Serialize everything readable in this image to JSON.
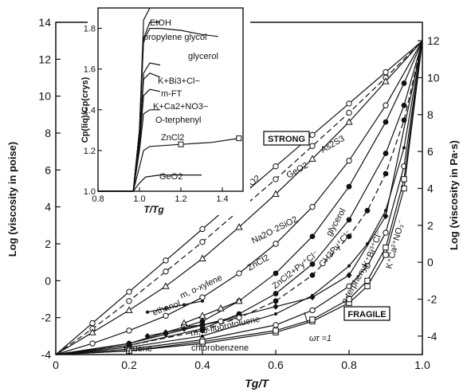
{
  "chart_data": [
    {
      "type": "line",
      "title": "",
      "xlabel": "Tg/T",
      "ylabel_left": "Log (viscosity in poise)",
      "ylabel_right": "Log (viscosity in Pa·s)",
      "xlim": [
        0,
        1.0
      ],
      "ylim_left": [
        -4,
        14
      ],
      "ylim_right": [
        -5,
        13
      ],
      "x_ticks": [
        "0",
        "0.2",
        "0.4",
        "0.6",
        "0.8",
        "1.0"
      ],
      "y_ticks_left": [
        "-4",
        "-2",
        "0",
        "2",
        "4",
        "6",
        "8",
        "10",
        "12",
        "14"
      ],
      "y_ticks_right": [
        "-4",
        "-2",
        "0",
        "2",
        "4",
        "6",
        "8",
        "10",
        "12"
      ],
      "annotations": {
        "strong": "STRONG",
        "fragile": "FRAGILE",
        "omega_tau": "ωτ =1"
      },
      "series": [
        {
          "name": "SiO2",
          "x": [
            0,
            0.1,
            0.2,
            0.3,
            0.4,
            0.5,
            0.6,
            0.7,
            0.8,
            0.9,
            1.0
          ],
          "y": [
            -4,
            -2.3,
            -0.6,
            1.1,
            2.8,
            4.5,
            6.2,
            7.9,
            9.6,
            11.3,
            13
          ]
        },
        {
          "name": "GeO2",
          "x": [
            0,
            0.1,
            0.2,
            0.3,
            0.4,
            0.5,
            0.6,
            0.7,
            0.8,
            0.9,
            1.0
          ],
          "y": [
            -4,
            -2.6,
            -1.1,
            0.5,
            2.1,
            3.8,
            5.5,
            7.3,
            9.1,
            11,
            13
          ]
        },
        {
          "name": "As2S3",
          "x": [
            0,
            0.1,
            0.2,
            0.3,
            0.4,
            0.5,
            0.6,
            0.7,
            0.8,
            0.9,
            1.0
          ],
          "y": [
            -4,
            -2.8,
            -1.6,
            -0.3,
            1.2,
            2.9,
            4.7,
            6.6,
            8.6,
            10.8,
            13
          ]
        },
        {
          "name": "Na2O·2SiO2",
          "x": [
            0,
            0.1,
            0.2,
            0.3,
            0.4,
            0.5,
            0.6,
            0.7,
            0.8,
            0.9,
            1.0
          ],
          "y": [
            -4,
            -3.4,
            -2.7,
            -1.9,
            -0.9,
            0.4,
            2,
            4,
            6.5,
            9.5,
            13
          ]
        },
        {
          "name": "ZnCl2",
          "x": [
            0,
            0.2,
            0.4,
            0.5,
            0.6,
            0.7,
            0.8,
            0.9,
            0.95,
            1.0
          ],
          "y": [
            -4,
            -3.4,
            -2.2,
            -1.1,
            0.4,
            2.4,
            5.1,
            8.6,
            10.7,
            13
          ]
        },
        {
          "name": "ZnCl2+Py⁺Cl⁻",
          "x": [
            0,
            0.2,
            0.4,
            0.5,
            0.6,
            0.7,
            0.8,
            0.9,
            0.95,
            1.0
          ],
          "y": [
            -4,
            -3.5,
            -2.6,
            -1.8,
            -0.7,
            0.9,
            3.3,
            6.9,
            9.5,
            13
          ]
        },
        {
          "name": "glycerol",
          "x": [
            0,
            0.2,
            0.4,
            0.5,
            0.6,
            0.7,
            0.8,
            0.85,
            0.9,
            0.95,
            1.0
          ],
          "y": [
            -4,
            -3.5,
            -2.7,
            -2,
            -1.1,
            0.3,
            2.4,
            3.8,
            5.8,
            8.7,
            13
          ]
        },
        {
          "name": "CH3Py⁺Cl⁻",
          "x": [
            0,
            0.2,
            0.4,
            0.6,
            0.7,
            0.8,
            0.85,
            0.9,
            0.95,
            1.0
          ],
          "y": [
            -4,
            -3.6,
            -3,
            -1.8,
            -0.8,
            0.8,
            2,
            3.8,
            7.2,
            13
          ]
        },
        {
          "name": "K⁺Bi³⁺Cl⁻",
          "x": [
            0,
            0.2,
            0.4,
            0.6,
            0.7,
            0.8,
            0.85,
            0.9,
            0.95,
            1.0
          ],
          "y": [
            -4,
            -3.7,
            -3.2,
            -2.4,
            -1.6,
            -0.3,
            0.8,
            2.6,
            6.2,
            13
          ]
        },
        {
          "name": "K⁺Ca²⁺NO₃⁻",
          "x": [
            0,
            0.2,
            0.4,
            0.6,
            0.7,
            0.8,
            0.85,
            0.9,
            0.95,
            1.0
          ],
          "y": [
            -4,
            -3.8,
            -3.4,
            -2.8,
            -2.2,
            -1.2,
            -0.3,
            1.4,
            5,
            13
          ]
        },
        {
          "name": "o-terphenyl",
          "x": [
            0,
            0.2,
            0.4,
            0.6,
            0.7,
            0.8,
            0.85,
            0.9,
            0.95,
            1.0
          ],
          "y": [
            -4,
            -3.8,
            -3.3,
            -2.7,
            -2.1,
            -1,
            0,
            1.8,
            5.5,
            13
          ]
        },
        {
          "name": "toluene",
          "x": [
            0,
            0.2,
            0.3,
            0.4,
            0.5,
            0.6,
            0.7,
            0.8,
            0.9,
            1.0
          ],
          "y": [
            -4,
            -3.4,
            -2.9,
            -2.4,
            -1.9,
            -1.4,
            -0.9,
            0.3,
            3.5,
            13
          ]
        },
        {
          "name": "m, o-xylene",
          "x": [
            0.35,
            0.4,
            0.45,
            0.5
          ],
          "y": [
            -2.3,
            -1.9,
            -1.5,
            -1.1
          ]
        },
        {
          "name": "ethanol",
          "x": [
            0.25,
            0.3,
            0.35,
            0.4
          ],
          "y": [
            -1.7,
            -1.5,
            -1.3,
            -1.1
          ]
        },
        {
          "name": "m, o-fluorotoluene",
          "x": [
            0.35,
            0.4,
            0.45,
            0.5
          ],
          "y": [
            -2.5,
            -2.4,
            -2.2,
            -2
          ]
        },
        {
          "name": "chlorobenzene",
          "x": [
            0.25,
            0.3,
            0.35,
            0.4
          ],
          "y": [
            -3,
            -2.8,
            -2.6,
            -2.4
          ]
        }
      ]
    },
    {
      "type": "line",
      "title": "",
      "xlabel": "T/Tg",
      "ylabel": "Cp(liq)/Cp(crys)",
      "xlim": [
        0.8,
        1.5
      ],
      "ylim": [
        1.0,
        1.9
      ],
      "x_ticks": [
        "0.8",
        "1.0",
        "1.2",
        "1.4"
      ],
      "y_ticks": [
        "1.0",
        "1.2",
        "1.4",
        "1.6",
        "1.8"
      ],
      "series": [
        {
          "name": "EtOH",
          "x": [
            0.8,
            0.97,
            1.0,
            1.02,
            1.05
          ],
          "y": [
            1.0,
            1.0,
            1.3,
            1.84,
            1.9
          ]
        },
        {
          "name": "propylene glycol",
          "x": [
            0.8,
            0.97,
            1.0,
            1.02,
            1.05,
            1.1
          ],
          "y": [
            1.0,
            1.0,
            1.3,
            1.75,
            1.83,
            1.83
          ]
        },
        {
          "name": "glycerol",
          "x": [
            0.8,
            0.97,
            1.0,
            1.02,
            1.05,
            1.1,
            1.2,
            1.3,
            1.38
          ],
          "y": [
            1.0,
            1.0,
            1.3,
            1.74,
            1.8,
            1.8,
            1.79,
            1.77,
            1.76
          ]
        },
        {
          "name": "K+Bi3+Cl−",
          "x": [
            0.8,
            0.97,
            1.0,
            1.02,
            1.05,
            1.1
          ],
          "y": [
            1.0,
            1.0,
            1.25,
            1.58,
            1.63,
            1.62
          ]
        },
        {
          "name": "m-FT",
          "x": [
            0.8,
            0.97,
            1.0,
            1.02,
            1.05,
            1.1
          ],
          "y": [
            1.0,
            1.0,
            1.25,
            1.55,
            1.58,
            1.56
          ]
        },
        {
          "name": "K+Ca2+NO3−",
          "x": [
            0.8,
            0.97,
            1.0,
            1.02,
            1.05,
            1.1
          ],
          "y": [
            1.0,
            1.0,
            1.22,
            1.47,
            1.5,
            1.49
          ]
        },
        {
          "name": "O-terphenyl",
          "x": [
            0.8,
            0.97,
            1.0,
            1.02,
            1.05,
            1.1
          ],
          "y": [
            1.0,
            1.0,
            1.2,
            1.38,
            1.4,
            1.4
          ]
        },
        {
          "name": "ZnCl2",
          "x": [
            0.8,
            0.97,
            1.0,
            1.02,
            1.05,
            1.2,
            1.35,
            1.48
          ],
          "y": [
            1.0,
            1.0,
            1.12,
            1.2,
            1.22,
            1.23,
            1.24,
            1.26
          ]
        },
        {
          "name": "GeO2",
          "x": [
            0.8,
            0.97,
            1.0,
            1.03,
            1.1,
            1.2,
            1.3
          ],
          "y": [
            1.0,
            1.0,
            1.04,
            1.07,
            1.08,
            1.08,
            1.08
          ]
        }
      ]
    }
  ]
}
